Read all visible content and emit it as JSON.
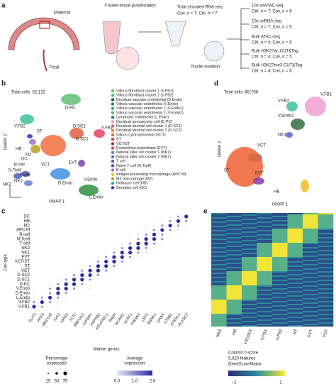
{
  "panel_a": {
    "label": "a",
    "maternal": "Maternal",
    "fetal": "Fetal",
    "pulverization": "Frozen-tissue pulverization",
    "rnaseq": "Total stranded RNA-seq",
    "rnaseq_n": "Cov, n = 7; Ctrl, n = 7",
    "nuclei": "Nuclei isolation",
    "assays": [
      {
        "name": "10x snATAC-seq",
        "n": "Ctrl, n = 7; Cov, n = 6"
      },
      {
        "name": "10x snRNA-seq",
        "n": "Ctrl, n = 7; Cov, n = 5"
      },
      {
        "name": "Bulk ATAC-seq",
        "n": "Ctrl, n = 4; Cov, n = 5"
      },
      {
        "name": "Bulk H3K27ac CUT&Tag",
        "n": "Ctrl, n = 4; Cov, n = 5"
      },
      {
        "name": "Bulk H3K27me3 CUT&Tag",
        "n": "Ctrl, n = 4; Cov, n = 5"
      }
    ]
  },
  "panel_b": {
    "label": "b",
    "total": "Total cells: 62,132",
    "xlabel": "UMAP 1",
    "ylabel": "UMAP 2",
    "clusters": [
      "D.PC",
      "V.FB2",
      "HB",
      "M2",
      "DC",
      "B cell",
      "N.Tcell",
      "T cell",
      "NK2",
      "NK1",
      "ST",
      "D.SC2",
      "D.SC1",
      "V.FB1",
      "VCT",
      "EVT",
      "D.Endo",
      "V.Endo",
      "L.Endo"
    ],
    "legend": [
      "Villous fibroblast cluster 1 (V.FB1)",
      "Villous fibroblast cluster 2 (V.FB2)",
      "Decidual vascular endothelial (D.Endo)",
      "Villous vascular endothelial (V.Endo)",
      "Villous vascular endothelial 1 (V.Endo1)",
      "Villous vascular endothelial 2 (V.Endo2)",
      "Lymphatic endothelial (L.Endo)",
      "Decidual perivascular cell (D.PC)",
      "Decidual stromal cell cluster 1 (D.SC1)",
      "Decidual stromal cell cluster 2 (D.SC2)",
      "Villous cytotrophoblast (VCT)",
      "ST",
      "VCT/ST",
      "Extravillous trophoblast (EVT)",
      "Natural killer cell cluster 1 (NK1)",
      "Natural killer cell cluster 2 (NK2)",
      "T cell",
      "Naive T cell (N.Tcell)",
      "B cell",
      "Antigen presenting macrophage (APC.M)",
      "M2 macrophage (M2)",
      "Hofbauer cell (HB)",
      "Dendritic cell (DC)"
    ]
  },
  "panel_d": {
    "label": "d",
    "total": "Total cells: 68,786",
    "xlabel": "UMAP 1",
    "ylabel": "UMAP 2",
    "clusters": [
      "V.FB1",
      "V.FB2",
      "V.Endo1",
      "NK1",
      "VCT",
      "ST",
      "EVT",
      "HB"
    ]
  },
  "panel_c": {
    "label": "c",
    "ylabel": "Cell type",
    "xlabel": "Marker genes",
    "rows": [
      "DC",
      "HB",
      "M2",
      "APC.M",
      "B cell",
      "N.Tcell",
      "T cell",
      "NK2",
      "NK1",
      "EVT",
      "VCT/ST",
      "ST",
      "VCT",
      "D.SC2",
      "D.SC1",
      "D.PC",
      "V.Endo",
      "D.Endo",
      "L.Endo",
      "V.FB2",
      "V.FB1"
    ],
    "genes": [
      "SLIT2",
      "AFF3",
      "MECOM",
      "IGF2",
      "NRG3",
      "FLT1",
      "RBFOX1",
      "IGFBP1",
      "PAPPA2",
      "ERVFRD-1",
      "PAEP",
      "NCAM1",
      "KLRF1",
      "THEMIS",
      "LEF1",
      "BANK1",
      "NAAA",
      "STAB1",
      "ATRNL1",
      "PLXDC2"
    ],
    "pct_title": [
      "Percentage",
      "expressed"
    ],
    "pct_ticks": [
      "25",
      "50",
      "75"
    ],
    "avg_title": [
      "Average",
      "expression"
    ],
    "avg_ticks": [
      "0.0",
      "1.0",
      "2.0"
    ]
  },
  "panel_e": {
    "label": "e",
    "columns": [
      "NK1",
      "HB",
      "V.Endo1",
      "V.FB1",
      "V.FB2",
      "ST",
      "EVT",
      "VCT"
    ],
    "caption": [
      "Column z-score",
      "5,920 features",
      "GeneScoreMatrix"
    ],
    "ticks": [
      "−2",
      "2"
    ]
  }
}
